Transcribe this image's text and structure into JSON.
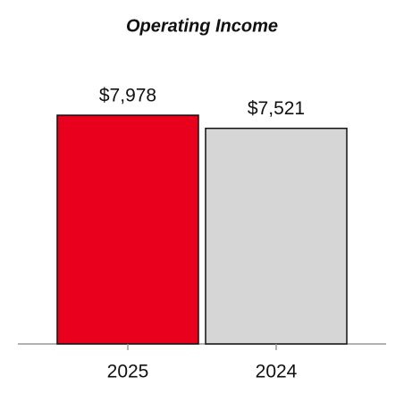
{
  "chart_data": {
    "type": "bar",
    "title": "Operating Income",
    "categories": [
      "2025",
      "2024"
    ],
    "values": [
      7978,
      7521
    ],
    "value_labels": [
      "$7,978",
      "$7,521"
    ],
    "colors": [
      "#e8001c",
      "#d5d6d5"
    ]
  }
}
